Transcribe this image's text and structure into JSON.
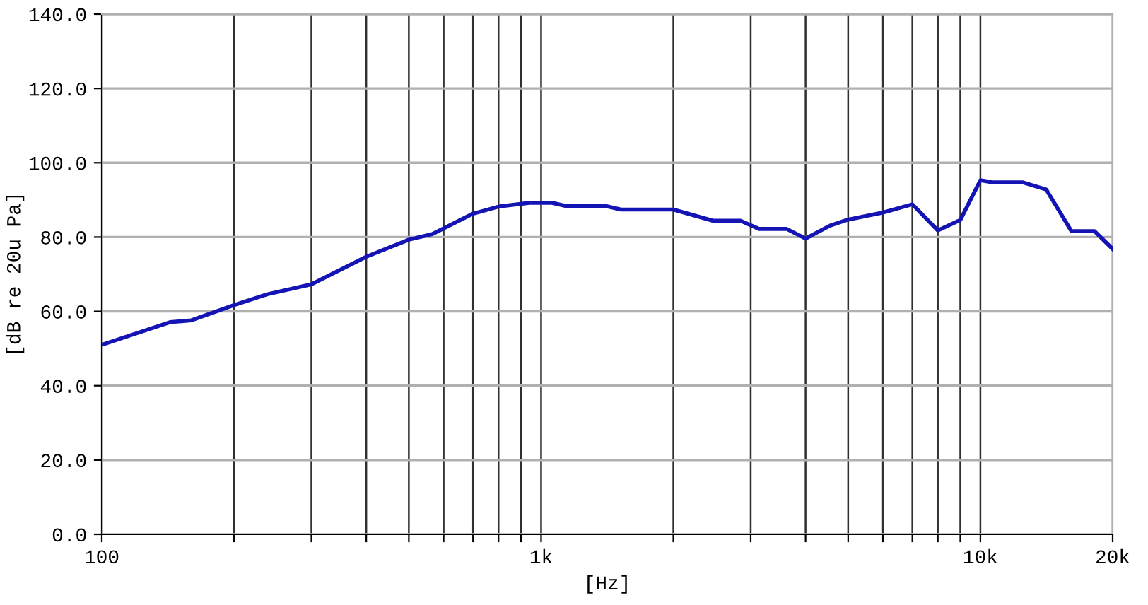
{
  "chart_data": {
    "type": "line",
    "xlabel": "[Hz]",
    "ylabel": "[dB re 20u Pa]",
    "log": "x",
    "grid": true,
    "marker": "none",
    "line_style": "solid",
    "xlim": [
      100,
      20000
    ],
    "ylim": [
      0,
      140
    ],
    "xticks": [
      100,
      {
        "value": 200,
        "label": null
      },
      {
        "value": 300,
        "label": null
      },
      {
        "value": 400,
        "label": null
      },
      {
        "value": 500,
        "label": null
      },
      {
        "value": 600,
        "label": null
      },
      {
        "value": 700,
        "label": null
      },
      {
        "value": 800,
        "label": null
      },
      {
        "value": 900,
        "label": null
      },
      {
        "value": 1000,
        "label": "1k"
      },
      {
        "value": 2000,
        "label": null
      },
      {
        "value": 3000,
        "label": null
      },
      {
        "value": 4000,
        "label": null
      },
      {
        "value": 5000,
        "label": null
      },
      {
        "value": 6000,
        "label": null
      },
      {
        "value": 7000,
        "label": null
      },
      {
        "value": 8000,
        "label": null
      },
      {
        "value": 9000,
        "label": null
      },
      {
        "value": 10000,
        "label": "10k"
      },
      {
        "value": 20000,
        "label": "20k"
      }
    ],
    "yticks": [
      {
        "value": 0,
        "label": "0.0"
      },
      {
        "value": 20,
        "label": "20.0"
      },
      {
        "value": 40,
        "label": "40.0"
      },
      {
        "value": 60,
        "label": "60.0"
      },
      {
        "value": 80,
        "label": "80.0"
      },
      {
        "value": 100,
        "label": "100.0"
      },
      {
        "value": 120,
        "label": "120.0"
      },
      {
        "value": 140,
        "label": "140.0"
      }
    ],
    "x": [
      100,
      143,
      160,
      200,
      238,
      300,
      400,
      500,
      565,
      700,
      800,
      940,
      1060,
      1135,
      1397,
      1521,
      2000,
      2460,
      2843,
      3133,
      3622,
      4000,
      4550,
      5000,
      6000,
      7000,
      8000,
      9000,
      10000,
      10700,
      12500,
      14120,
      16110,
      18180,
      20000
    ],
    "series": [
      {
        "color": "#1414b4",
        "values": [
          51,
          57.1,
          57.6,
          61.7,
          64.6,
          67.3,
          74.7,
          79.3,
          80.8,
          86.3,
          88.2,
          89.2,
          89.2,
          88.4,
          88.4,
          87.4,
          87.4,
          84.4,
          84.4,
          82.2,
          82.2,
          79.6,
          83.1,
          84.7,
          86.6,
          88.8,
          81.8,
          84.6,
          95.3,
          94.7,
          94.7,
          92.8,
          81.6,
          81.6,
          76.8
        ]
      }
    ]
  }
}
